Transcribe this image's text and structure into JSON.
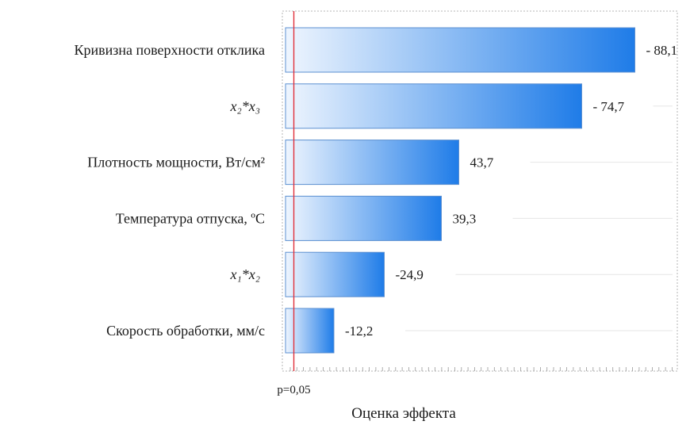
{
  "chart_data": {
    "type": "bar",
    "orientation": "horizontal",
    "categories": [
      "Кривизна поверхности отклика",
      "x₂*x₃",
      "Плотность мощности, Вт/см²",
      "Температура отпуска, ºС",
      "x₁*x₂",
      "Скорость обработки, мм/с"
    ],
    "values": [
      88.1,
      74.7,
      43.7,
      39.3,
      24.9,
      12.2
    ],
    "value_labels": [
      "- 88,1",
      "- 74,7",
      "43,7",
      "39,3",
      "-24,9",
      "-12,2"
    ],
    "xlabel": "Оценка эффекта",
    "reference_line": {
      "value": 2.1,
      "label": "p=0,05",
      "color": "#e0303a"
    },
    "xlim": [
      0,
      100
    ],
    "bar_gradient": [
      "#eef5fe",
      "#1f7ce8"
    ],
    "grid": false,
    "legend": "none"
  }
}
